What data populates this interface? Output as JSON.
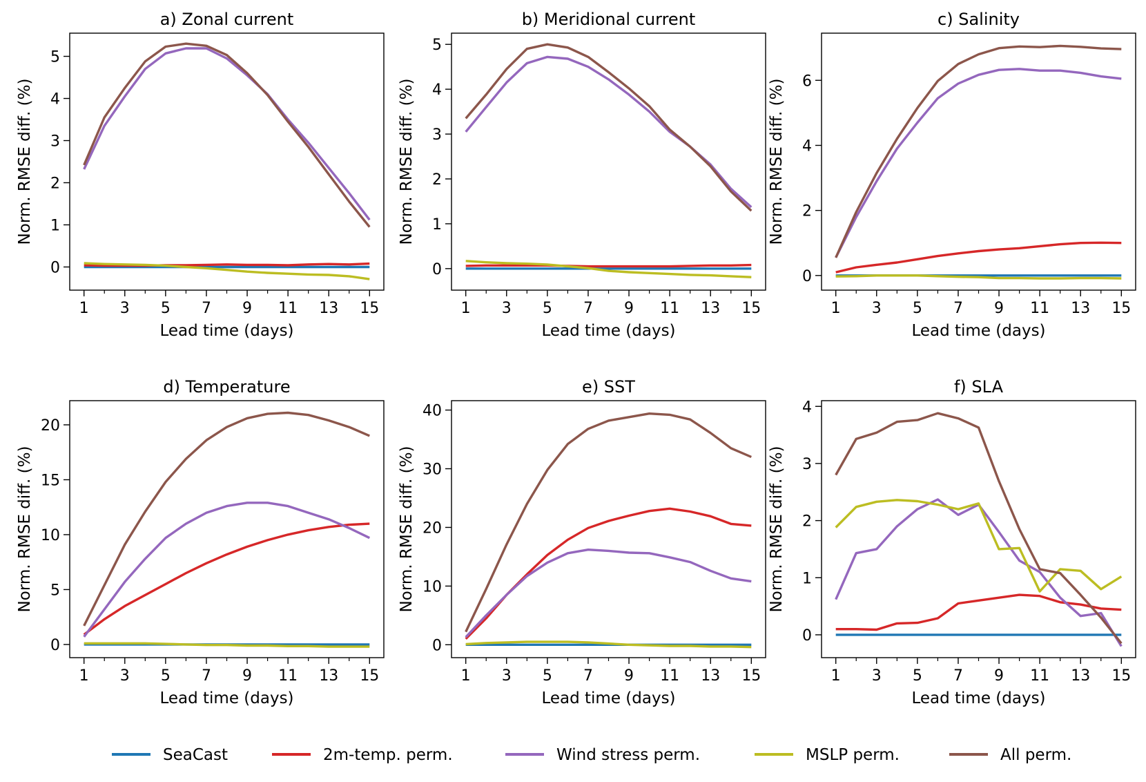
{
  "legend": [
    {
      "key": "seacast",
      "label": "SeaCast",
      "color": "#1f77b4"
    },
    {
      "key": "temp2m",
      "label": "2m-temp. perm.",
      "color": "#d62728"
    },
    {
      "key": "wind",
      "label": "Wind stress perm.",
      "color": "#9467bd"
    },
    {
      "key": "mslp",
      "label": "MSLP perm.",
      "color": "#bcbd22"
    },
    {
      "key": "all",
      "label": "All perm.",
      "color": "#8c564b"
    }
  ],
  "chart_data": [
    {
      "type": "line",
      "title": "a) Zonal current",
      "xlabel": "Lead time (days)",
      "ylabel": "Norm. RMSE diff. (%)",
      "x": [
        1,
        2,
        3,
        4,
        5,
        6,
        7,
        8,
        9,
        10,
        11,
        12,
        13,
        14,
        15
      ],
      "xticks": [
        1,
        3,
        5,
        7,
        9,
        11,
        13,
        15
      ],
      "xtick_labels": [
        "1",
        "3",
        "5",
        "7",
        "9",
        "11",
        "13",
        "15"
      ],
      "xlim": [
        0.3,
        15.7
      ],
      "ylim": [
        -0.55,
        5.55
      ],
      "yticks": [
        0,
        1,
        2,
        3,
        4,
        5
      ],
      "ytick_labels": [
        "0",
        "1",
        "2",
        "3",
        "4",
        "5"
      ],
      "series": [
        {
          "name": "SeaCast",
          "color": "#1f77b4",
          "values": [
            0,
            0,
            0,
            0,
            0,
            0,
            0,
            0,
            0,
            0,
            0,
            0,
            0,
            0,
            0
          ]
        },
        {
          "name": "2m-temp. perm.",
          "color": "#d62728",
          "values": [
            0.04,
            0.03,
            0.03,
            0.03,
            0.04,
            0.04,
            0.05,
            0.06,
            0.05,
            0.05,
            0.04,
            0.06,
            0.07,
            0.06,
            0.08
          ]
        },
        {
          "name": "Wind stress perm.",
          "color": "#9467bd",
          "values": [
            2.32,
            3.35,
            4.05,
            4.7,
            5.07,
            5.19,
            5.19,
            4.95,
            4.55,
            4.1,
            3.5,
            2.95,
            2.35,
            1.75,
            1.12
          ]
        },
        {
          "name": "MSLP perm.",
          "color": "#bcbd22",
          "values": [
            0.09,
            0.07,
            0.06,
            0.05,
            0.03,
            0.0,
            -0.03,
            -0.07,
            -0.11,
            -0.14,
            -0.16,
            -0.18,
            -0.19,
            -0.22,
            -0.29
          ]
        },
        {
          "name": "All perm.",
          "color": "#8c564b",
          "values": [
            2.42,
            3.55,
            4.25,
            4.88,
            5.23,
            5.3,
            5.25,
            5.03,
            4.6,
            4.08,
            3.45,
            2.85,
            2.2,
            1.55,
            0.95
          ]
        }
      ]
    },
    {
      "type": "line",
      "title": "b) Meridional current",
      "xlabel": "Lead time (days)",
      "ylabel": "Norm. RMSE diff. (%)",
      "x": [
        1,
        2,
        3,
        4,
        5,
        6,
        7,
        8,
        9,
        10,
        11,
        12,
        13,
        14,
        15
      ],
      "xticks": [
        1,
        3,
        5,
        7,
        9,
        11,
        13,
        15
      ],
      "xtick_labels": [
        "1",
        "3",
        "5",
        "7",
        "9",
        "11",
        "13",
        "15"
      ],
      "xlim": [
        0.3,
        15.7
      ],
      "ylim": [
        -0.48,
        5.25
      ],
      "yticks": [
        0,
        1,
        2,
        3,
        4,
        5
      ],
      "ytick_labels": [
        "0",
        "1",
        "2",
        "3",
        "4",
        "5"
      ],
      "series": [
        {
          "name": "SeaCast",
          "color": "#1f77b4",
          "values": [
            0,
            0,
            0,
            0,
            0,
            0,
            0,
            0,
            0,
            0,
            0,
            0,
            0,
            0,
            0
          ]
        },
        {
          "name": "2m-temp. perm.",
          "color": "#d62728",
          "values": [
            0.06,
            0.07,
            0.07,
            0.07,
            0.07,
            0.06,
            0.05,
            0.05,
            0.05,
            0.05,
            0.05,
            0.06,
            0.07,
            0.07,
            0.08
          ]
        },
        {
          "name": "Wind stress perm.",
          "color": "#9467bd",
          "values": [
            3.05,
            3.6,
            4.15,
            4.58,
            4.72,
            4.68,
            4.5,
            4.22,
            3.88,
            3.5,
            3.05,
            2.72,
            2.32,
            1.78,
            1.37
          ]
        },
        {
          "name": "MSLP perm.",
          "color": "#bcbd22",
          "values": [
            0.17,
            0.14,
            0.12,
            0.11,
            0.09,
            0.05,
            0.01,
            -0.05,
            -0.08,
            -0.1,
            -0.12,
            -0.14,
            -0.15,
            -0.17,
            -0.19
          ]
        },
        {
          "name": "All perm.",
          "color": "#8c564b",
          "values": [
            3.35,
            3.88,
            4.45,
            4.9,
            5.0,
            4.93,
            4.72,
            4.38,
            4.02,
            3.62,
            3.1,
            2.72,
            2.28,
            1.72,
            1.29
          ]
        }
      ]
    },
    {
      "type": "line",
      "title": "c) Salinity",
      "xlabel": "Lead time (days)",
      "ylabel": "Norm. RMSE diff. (%)",
      "x": [
        1,
        2,
        3,
        4,
        5,
        6,
        7,
        8,
        9,
        10,
        11,
        12,
        13,
        14,
        15
      ],
      "xticks": [
        1,
        3,
        5,
        7,
        9,
        11,
        13,
        15
      ],
      "xtick_labels": [
        "1",
        "3",
        "5",
        "7",
        "9",
        "11",
        "13",
        "15"
      ],
      "xlim": [
        0.3,
        15.7
      ],
      "ylim": [
        -0.45,
        7.45
      ],
      "yticks": [
        0,
        2,
        4,
        6
      ],
      "ytick_labels": [
        "0",
        "2",
        "4",
        "6"
      ],
      "series": [
        {
          "name": "SeaCast",
          "color": "#1f77b4",
          "values": [
            0,
            0,
            0,
            0,
            0,
            0,
            0,
            0,
            0,
            0,
            0,
            0,
            0,
            0,
            0
          ]
        },
        {
          "name": "2m-temp. perm.",
          "color": "#d62728",
          "values": [
            0.1,
            0.25,
            0.33,
            0.4,
            0.5,
            0.6,
            0.68,
            0.75,
            0.8,
            0.84,
            0.9,
            0.96,
            1.0,
            1.01,
            1.0
          ]
        },
        {
          "name": "Wind stress perm.",
          "color": "#9467bd",
          "values": [
            0.55,
            1.8,
            2.9,
            3.9,
            4.7,
            5.45,
            5.9,
            6.17,
            6.32,
            6.35,
            6.3,
            6.3,
            6.23,
            6.12,
            6.05
          ]
        },
        {
          "name": "MSLP perm.",
          "color": "#bcbd22",
          "values": [
            -0.03,
            -0.02,
            0.0,
            0.0,
            0.0,
            -0.02,
            -0.04,
            -0.05,
            -0.08,
            -0.08,
            -0.09,
            -0.09,
            -0.08,
            -0.08,
            -0.09
          ]
        },
        {
          "name": "All perm.",
          "color": "#8c564b",
          "values": [
            0.55,
            1.95,
            3.15,
            4.2,
            5.15,
            5.98,
            6.5,
            6.8,
            6.99,
            7.04,
            7.02,
            7.06,
            7.03,
            6.98,
            6.96
          ]
        }
      ]
    },
    {
      "type": "line",
      "title": "d) Temperature",
      "xlabel": "Lead time (days)",
      "ylabel": "Norm. RMSE diff. (%)",
      "x": [
        1,
        2,
        3,
        4,
        5,
        6,
        7,
        8,
        9,
        10,
        11,
        12,
        13,
        14,
        15
      ],
      "xticks": [
        1,
        3,
        5,
        7,
        9,
        11,
        13,
        15
      ],
      "xtick_labels": [
        "1",
        "3",
        "5",
        "7",
        "9",
        "11",
        "13",
        "15"
      ],
      "xlim": [
        0.3,
        15.7
      ],
      "ylim": [
        -1.2,
        22.2
      ],
      "yticks": [
        0,
        5,
        10,
        15,
        20
      ],
      "ytick_labels": [
        "0",
        "5",
        "10",
        "15",
        "20"
      ],
      "series": [
        {
          "name": "SeaCast",
          "color": "#1f77b4",
          "values": [
            0,
            0,
            0,
            0,
            0,
            0,
            0,
            0,
            0,
            0,
            0,
            0,
            0,
            0,
            0
          ]
        },
        {
          "name": "2m-temp. perm.",
          "color": "#d62728",
          "values": [
            0.9,
            2.3,
            3.5,
            4.5,
            5.5,
            6.5,
            7.4,
            8.2,
            8.9,
            9.5,
            10.0,
            10.4,
            10.7,
            10.9,
            11.0
          ]
        },
        {
          "name": "Wind stress perm.",
          "color": "#9467bd",
          "values": [
            0.7,
            3.2,
            5.7,
            7.8,
            9.7,
            11.0,
            12.0,
            12.6,
            12.9,
            12.9,
            12.6,
            12.0,
            11.4,
            10.6,
            9.7
          ]
        },
        {
          "name": "MSLP perm.",
          "color": "#bcbd22",
          "values": [
            0.1,
            0.1,
            0.1,
            0.1,
            0.05,
            0.0,
            -0.05,
            -0.05,
            -0.1,
            -0.1,
            -0.15,
            -0.15,
            -0.2,
            -0.2,
            -0.2
          ]
        },
        {
          "name": "All perm.",
          "color": "#8c564b",
          "values": [
            1.7,
            5.4,
            9.1,
            12.1,
            14.8,
            16.9,
            18.6,
            19.8,
            20.6,
            21.0,
            21.1,
            20.9,
            20.4,
            19.8,
            19.0
          ]
        }
      ]
    },
    {
      "type": "line",
      "title": "e) SST",
      "xlabel": "Lead time (days)",
      "ylabel": "Norm. RMSE diff. (%)",
      "x": [
        1,
        2,
        3,
        4,
        5,
        6,
        7,
        8,
        9,
        10,
        11,
        12,
        13,
        14,
        15
      ],
      "xticks": [
        1,
        3,
        5,
        7,
        9,
        11,
        13,
        15
      ],
      "xtick_labels": [
        "1",
        "3",
        "5",
        "7",
        "9",
        "11",
        "13",
        "15"
      ],
      "xlim": [
        0.3,
        15.7
      ],
      "ylim": [
        -2.2,
        41.6
      ],
      "yticks": [
        0,
        10,
        20,
        30,
        40
      ],
      "ytick_labels": [
        "0",
        "10",
        "20",
        "30",
        "40"
      ],
      "series": [
        {
          "name": "SeaCast",
          "color": "#1f77b4",
          "values": [
            0,
            0,
            0,
            0,
            0,
            0,
            0,
            0,
            0,
            0,
            0,
            0,
            0,
            0,
            0
          ]
        },
        {
          "name": "2m-temp. perm.",
          "color": "#d62728",
          "values": [
            1.0,
            4.5,
            8.5,
            12.0,
            15.3,
            17.9,
            19.9,
            21.1,
            22.0,
            22.8,
            23.2,
            22.7,
            21.9,
            20.6,
            20.3
          ]
        },
        {
          "name": "Wind stress perm.",
          "color": "#9467bd",
          "values": [
            1.3,
            5.0,
            8.5,
            11.7,
            14.0,
            15.6,
            16.2,
            16.0,
            15.7,
            15.6,
            14.9,
            14.1,
            12.6,
            11.3,
            10.8
          ]
        },
        {
          "name": "MSLP perm.",
          "color": "#bcbd22",
          "values": [
            0.1,
            0.3,
            0.4,
            0.5,
            0.5,
            0.5,
            0.4,
            0.2,
            0.0,
            -0.1,
            -0.2,
            -0.2,
            -0.3,
            -0.3,
            -0.4
          ]
        },
        {
          "name": "All perm.",
          "color": "#8c564b",
          "values": [
            2.2,
            9.5,
            17.1,
            24.0,
            29.8,
            34.2,
            36.8,
            38.2,
            38.8,
            39.4,
            39.2,
            38.4,
            36.1,
            33.5,
            32.0
          ]
        }
      ]
    },
    {
      "type": "line",
      "title": "f) SLA",
      "xlabel": "Lead time (days)",
      "ylabel": "Norm. RMSE diff. (%)",
      "x": [
        1,
        2,
        3,
        4,
        5,
        6,
        7,
        8,
        9,
        10,
        11,
        12,
        13,
        14,
        15
      ],
      "xticks": [
        1,
        3,
        5,
        7,
        9,
        11,
        13,
        15
      ],
      "xtick_labels": [
        "1",
        "3",
        "5",
        "7",
        "9",
        "11",
        "13",
        "15"
      ],
      "xlim": [
        0.3,
        15.7
      ],
      "ylim": [
        -0.4,
        4.1
      ],
      "yticks": [
        0,
        1,
        2,
        3,
        4
      ],
      "ytick_labels": [
        "0",
        "1",
        "2",
        "3",
        "4"
      ],
      "series": [
        {
          "name": "SeaCast",
          "color": "#1f77b4",
          "values": [
            0,
            0,
            0,
            0,
            0,
            0,
            0,
            0,
            0,
            0,
            0,
            0,
            0,
            0,
            0
          ]
        },
        {
          "name": "2m-temp. perm.",
          "color": "#d62728",
          "values": [
            0.1,
            0.1,
            0.09,
            0.2,
            0.21,
            0.29,
            0.55,
            0.6,
            0.65,
            0.7,
            0.68,
            0.57,
            0.53,
            0.46,
            0.44
          ]
        },
        {
          "name": "Wind stress perm.",
          "color": "#9467bd",
          "values": [
            0.62,
            1.43,
            1.5,
            1.9,
            2.2,
            2.37,
            2.1,
            2.28,
            1.8,
            1.3,
            1.1,
            0.65,
            0.33,
            0.38,
            -0.2
          ]
        },
        {
          "name": "MSLP perm.",
          "color": "#bcbd22",
          "values": [
            1.88,
            2.24,
            2.33,
            2.36,
            2.34,
            2.28,
            2.2,
            2.3,
            1.5,
            1.52,
            0.76,
            1.15,
            1.12,
            0.8,
            1.02
          ]
        },
        {
          "name": "All perm.",
          "color": "#8c564b",
          "values": [
            2.8,
            3.43,
            3.54,
            3.73,
            3.76,
            3.88,
            3.79,
            3.63,
            2.69,
            1.85,
            1.15,
            1.08,
            0.7,
            0.3,
            -0.15
          ]
        }
      ]
    }
  ]
}
